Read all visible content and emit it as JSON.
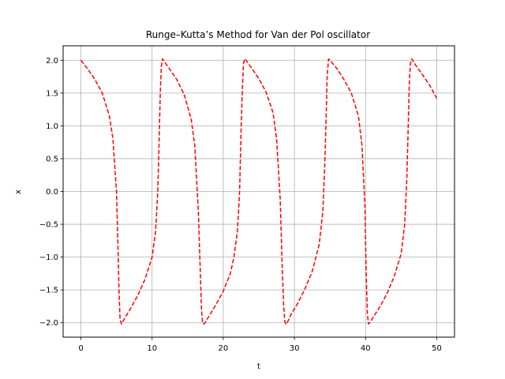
{
  "chart_data": {
    "type": "line",
    "title": "Runge–Kutta’s Method for Van der Pol oscillator",
    "xlabel": "t",
    "ylabel": "x",
    "xlim": [
      -2.5,
      52.5
    ],
    "ylim": [
      -2.22,
      2.22
    ],
    "xticks": [
      0,
      10,
      20,
      30,
      40,
      50
    ],
    "xtick_labels": [
      "0",
      "10",
      "20",
      "30",
      "40",
      "50"
    ],
    "yticks": [
      -2.0,
      -1.5,
      -1.0,
      -0.5,
      0.0,
      0.5,
      1.0,
      1.5,
      2.0
    ],
    "ytick_labels": [
      "−2.0",
      "−1.5",
      "−1.0",
      "−0.5",
      "0.0",
      "0.5",
      "1.0",
      "1.5",
      "2.0"
    ],
    "grid": true,
    "series": [
      {
        "color": "#ff0000",
        "linestyle": "dashed",
        "x": [
          0,
          1,
          2,
          3,
          4,
          4.5,
          5.0,
          5.2,
          5.35,
          5.5,
          5.7,
          6,
          7,
          8,
          9,
          10,
          10.5,
          10.8,
          11.0,
          11.15,
          11.3,
          11.45,
          11.6,
          12.5,
          13.5,
          14.5,
          15.5,
          16.0,
          16.5,
          16.8,
          16.95,
          17.1,
          17.3,
          17.5,
          18,
          19,
          20,
          21,
          21.5,
          22.0,
          22.3,
          22.5,
          22.7,
          22.85,
          23.0,
          23.2,
          24,
          25,
          26,
          27,
          27.5,
          28.0,
          28.3,
          28.5,
          28.65,
          28.8,
          29.0,
          29.5,
          30.5,
          31.5,
          32.5,
          33.5,
          34.0,
          34.3,
          34.5,
          34.6,
          34.8,
          35.0,
          36,
          37,
          38,
          39,
          39.5,
          39.9,
          40.1,
          40.25,
          40.4,
          40.6,
          41,
          42,
          43,
          44,
          45,
          45.5,
          45.8,
          46.0,
          46.15,
          46.3,
          46.5,
          47,
          48,
          49,
          50
        ],
        "y": [
          2.0,
          1.86,
          1.7,
          1.5,
          1.15,
          0.8,
          0.0,
          -0.8,
          -1.5,
          -1.95,
          -2.02,
          -1.96,
          -1.78,
          -1.58,
          -1.34,
          -1.0,
          -0.6,
          0.0,
          0.8,
          1.5,
          1.9,
          2.02,
          2.0,
          1.86,
          1.7,
          1.48,
          1.1,
          0.7,
          -0.3,
          -1.3,
          -1.8,
          -2.01,
          -2.02,
          -1.99,
          -1.9,
          -1.72,
          -1.52,
          -1.25,
          -1.0,
          -0.6,
          0.0,
          0.9,
          1.6,
          1.95,
          2.02,
          2.0,
          1.88,
          1.72,
          1.52,
          1.2,
          0.8,
          -0.1,
          -1.2,
          -1.75,
          -1.98,
          -2.02,
          -2.0,
          -1.88,
          -1.7,
          -1.48,
          -1.22,
          -0.8,
          -0.3,
          0.5,
          1.3,
          1.75,
          2.02,
          2.0,
          1.87,
          1.7,
          1.5,
          1.15,
          0.7,
          -0.2,
          -1.3,
          -1.85,
          -2.02,
          -2.0,
          -1.93,
          -1.76,
          -1.56,
          -1.3,
          -0.95,
          -0.5,
          0.2,
          1.0,
          1.65,
          1.95,
          2.02,
          1.93,
          1.78,
          1.62,
          1.42
        ]
      }
    ]
  }
}
